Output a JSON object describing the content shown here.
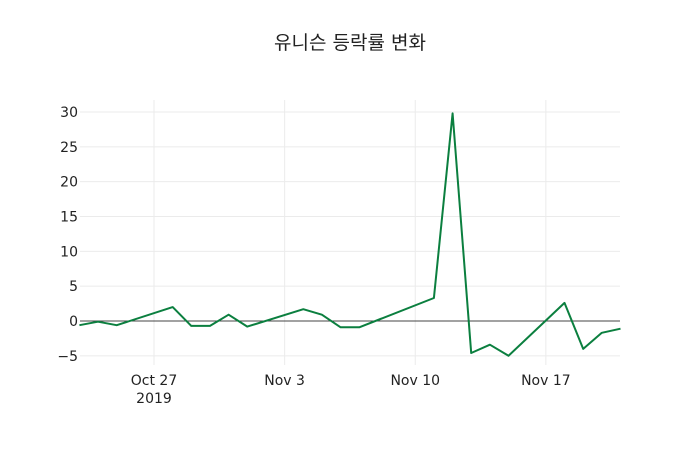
{
  "chart_data": {
    "type": "line",
    "title": "유니슨 등락률 변화",
    "xlabel": "",
    "ylabel": "",
    "ylim": [
      -6.5,
      31.5
    ],
    "grid": true,
    "x_ticks": [
      {
        "date": "2019-10-27",
        "label": "Oct 27",
        "sublabel": "2019"
      },
      {
        "date": "2019-11-03",
        "label": "Nov 3",
        "sublabel": ""
      },
      {
        "date": "2019-11-10",
        "label": "Nov 10",
        "sublabel": ""
      },
      {
        "date": "2019-11-17",
        "label": "Nov 17",
        "sublabel": ""
      }
    ],
    "y_ticks": [
      30,
      25,
      20,
      15,
      10,
      5,
      0,
      -5
    ],
    "y_tick_labels": [
      "30",
      "25",
      "20",
      "15",
      "10",
      "5",
      "0",
      "−5"
    ],
    "series": [
      {
        "name": "등락률",
        "color": "#0b7f3f",
        "x": [
          "2019-10-23",
          "2019-10-24",
          "2019-10-25",
          "2019-10-28",
          "2019-10-29",
          "2019-10-30",
          "2019-10-31",
          "2019-11-01",
          "2019-11-04",
          "2019-11-05",
          "2019-11-06",
          "2019-11-07",
          "2019-11-11",
          "2019-11-12",
          "2019-11-13",
          "2019-11-14",
          "2019-11-15",
          "2019-11-18",
          "2019-11-19",
          "2019-11-20",
          "2019-11-21"
        ],
        "values": [
          -0.6,
          -0.1,
          -0.6,
          2.0,
          -0.7,
          -0.7,
          0.9,
          -0.8,
          1.7,
          0.9,
          -0.9,
          -0.9,
          3.3,
          29.8,
          -4.6,
          -3.4,
          -5.0,
          2.6,
          -4.0,
          -1.7,
          -1.1
        ]
      }
    ]
  }
}
